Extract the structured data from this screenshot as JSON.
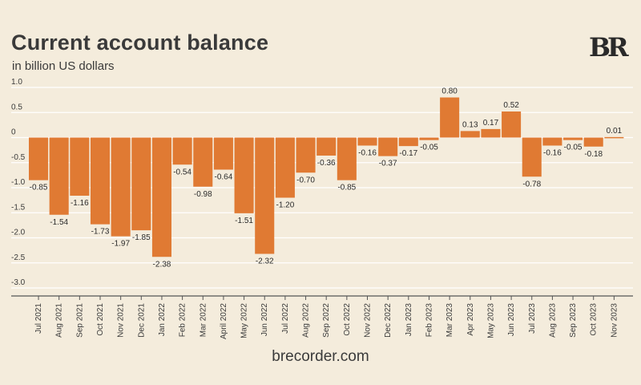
{
  "title": "Current account balance",
  "subtitle": "in billion US dollars",
  "logo_text": "BR",
  "footer": "brecorder.com",
  "colors": {
    "bar": "#e07a33",
    "background": "#f4ecdc",
    "text": "#3a3a3a",
    "grid": "#ffffff"
  },
  "chart_data": {
    "type": "bar",
    "categories": [
      "Jul 2021",
      "Aug 2021",
      "Sep 2021",
      "Oct 2021",
      "Nov 2021",
      "Dec 2021",
      "Jan 2022",
      "Feb 2022",
      "Mar 2022",
      "April 2022",
      "May 2022",
      "Jun 2022",
      "Jul 2022",
      "Aug 2022",
      "Sep 2022",
      "Oct 2022",
      "Nov 2022",
      "Dec 2022",
      "Jan 2023",
      "Feb 2023",
      "Mar 2023",
      "Apr 2023",
      "May 2023",
      "Jun 2023",
      "Jul 2023",
      "Aug 2023",
      "Sep 2023",
      "Oct 2023",
      "Nov 2023"
    ],
    "values": [
      -0.85,
      -1.54,
      -1.16,
      -1.73,
      -1.97,
      -1.85,
      -2.38,
      -0.54,
      -0.98,
      -0.64,
      -1.51,
      -2.32,
      -1.2,
      -0.7,
      -0.36,
      -0.85,
      -0.16,
      -0.37,
      -0.17,
      -0.05,
      0.8,
      0.13,
      0.17,
      0.52,
      -0.78,
      -0.16,
      -0.05,
      -0.18,
      0.01
    ],
    "value_labels": [
      "-0.85",
      "-1.54",
      "-1.16",
      "-1.73",
      "-1.97",
      "-1.85",
      "-2.38",
      "-0.54",
      "-0.98",
      "-0.64",
      "-1.51",
      "-2.32",
      "-1.20",
      "-0.70",
      "-0.36",
      "-0.85",
      "-0.16",
      "-0.37",
      "-0.17",
      "-0.05",
      "0.80",
      "0.13",
      "0.17",
      "0.52",
      "-0.78",
      "-0.16",
      "-0.05",
      "-0.18",
      "0.01"
    ],
    "yticks": [
      1.0,
      0.5,
      0,
      -0.5,
      -1.0,
      -1.5,
      -2.0,
      -2.5,
      -3.0
    ],
    "ytick_labels": [
      "1.0",
      "0.5",
      "0",
      "-0.5",
      "-1.0",
      "-1.5",
      "-2.0",
      "-2.5",
      "-3.0"
    ],
    "ylim": [
      -3.0,
      1.0
    ],
    "grid": true,
    "legend": "none",
    "title": "Current account balance",
    "xlabel": "",
    "ylabel": ""
  }
}
